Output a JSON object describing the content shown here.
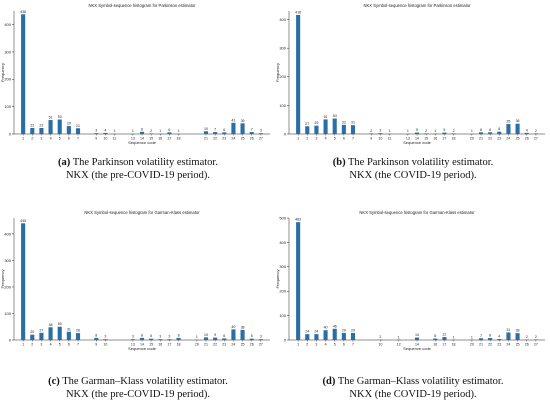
{
  "colors": {
    "bar": "#2a6ea6",
    "axis": "#222222",
    "text": "#222222"
  },
  "panels": [
    {
      "chart_data": {
        "type": "bar",
        "title": "NKX Symbol-sequence histogram for Parkinson estimator",
        "xlabel": "Sequence code",
        "ylabel": "Frequency",
        "ylim": [
          0,
          450
        ],
        "yticks": [
          0,
          100,
          200,
          300,
          400
        ],
        "categories": [
          "1",
          "2",
          "3",
          "4",
          "5",
          "6",
          "7",
          "9",
          "10",
          "11",
          "13",
          "14",
          "15",
          "16",
          "17",
          "18",
          "21",
          "22",
          "23",
          "24",
          "25",
          "26",
          "27"
        ],
        "x": [
          1,
          2,
          3,
          4,
          5,
          6,
          7,
          9,
          10,
          11,
          13,
          14,
          15,
          16,
          17,
          18,
          21,
          22,
          23,
          24,
          25,
          26,
          27
        ],
        "values": [
          438,
          22,
          22,
          51,
          53,
          29,
          21,
          3,
          4,
          1,
          1,
          8,
          2,
          1,
          6,
          1,
          10,
          7,
          6,
          41,
          39,
          7,
          3
        ],
        "bar_labels": [
          "438",
          "22",
          "22",
          "51",
          "53",
          "29",
          "21",
          "3",
          "4",
          "1",
          "1",
          "8",
          "2",
          "1",
          "6",
          "1",
          "10",
          "7",
          "6",
          "41",
          "39",
          "7",
          "3"
        ]
      },
      "caption": {
        "tag": "(a)",
        "line1": "The Parkinson volatility estimator.",
        "line2": "NKX (the pre-COVID-19 period)."
      }
    },
    {
      "chart_data": {
        "type": "bar",
        "title": "NKX Symbol-sequence histogram for Parkinson estimator",
        "xlabel": "Sequence code",
        "ylabel": "Frequency",
        "ylim": [
          0,
          430
        ],
        "yticks": [
          0,
          100,
          200,
          300,
          400
        ],
        "categories": [
          "1",
          "2",
          "3",
          "4",
          "5",
          "6",
          "7",
          "9",
          "10",
          "11",
          "13",
          "14",
          "15",
          "16",
          "17",
          "18",
          "20",
          "21",
          "22",
          "23",
          "24",
          "25",
          "26",
          "27"
        ],
        "x": [
          1,
          2,
          3,
          4,
          5,
          6,
          7,
          9,
          10,
          11,
          13,
          14,
          15,
          16,
          17,
          18,
          20,
          21,
          22,
          23,
          24,
          25,
          26,
          27
        ],
        "values": [
          416,
          27,
          29,
          51,
          54,
          32,
          31,
          2,
          3,
          1,
          1,
          5,
          2,
          1,
          5,
          2,
          1,
          6,
          6,
          8,
          35,
          36,
          4,
          2
        ],
        "bar_labels": [
          "416",
          "27",
          "29",
          "51",
          "54",
          "32",
          "31",
          "2",
          "3",
          "1",
          "1",
          "5",
          "2",
          "1",
          "5",
          "2",
          "1",
          "6",
          "6",
          "8",
          "35",
          "36",
          "4",
          "2"
        ]
      },
      "caption": {
        "tag": "(b)",
        "line1": "The Parkinson volatility estimator.",
        "line2": "NKX (the COVID-19 period)."
      }
    },
    {
      "chart_data": {
        "type": "bar",
        "title": "NKX Symbol-sequence histogram for Garman-Klass estimator",
        "xlabel": "Sequence code",
        "ylabel": "Frequency",
        "ylim": [
          0,
          460
        ],
        "yticks": [
          0,
          100,
          200,
          300,
          400
        ],
        "categories": [
          "1",
          "2",
          "3",
          "4",
          "5",
          "6",
          "7",
          "9",
          "10",
          "13",
          "14",
          "15",
          "16",
          "17",
          "18",
          "20",
          "21",
          "22",
          "23",
          "24",
          "25",
          "26",
          "27"
        ],
        "x": [
          1,
          2,
          3,
          4,
          5,
          6,
          7,
          9,
          10,
          13,
          14,
          15,
          16,
          17,
          18,
          20,
          21,
          22,
          23,
          24,
          25,
          26,
          27
        ],
        "values": [
          440,
          20,
          27,
          48,
          50,
          31,
          26,
          8,
          3,
          3,
          8,
          5,
          3,
          3,
          8,
          1,
          10,
          9,
          6,
          40,
          38,
          5,
          3
        ],
        "bar_labels": [
          "440",
          "20",
          "27",
          "48",
          "50",
          "31",
          "26",
          "8",
          "3",
          "3",
          "8",
          "5",
          "3",
          "3",
          "8",
          "1",
          "10",
          "9",
          "6",
          "40",
          "38",
          "5",
          "3"
        ]
      },
      "caption": {
        "tag": "(c)",
        "line1": "The Garman–Klass volatility estimator.",
        "line2": "NKX (the pre-COVID-19 period)."
      }
    },
    {
      "chart_data": {
        "type": "bar",
        "title": "NKX Symbol-sequence histogram for Garman-Klass estimator",
        "xlabel": "Sequence code",
        "ylabel": "Frequency",
        "ylim": [
          0,
          500
        ],
        "yticks": [
          0,
          100,
          200,
          300,
          400,
          500
        ],
        "categories": [
          "1",
          "2",
          "3",
          "4",
          "5",
          "6",
          "7",
          "10",
          "12",
          "14",
          "16",
          "17",
          "18",
          "20",
          "21",
          "22",
          "23",
          "24",
          "25",
          "26",
          "27"
        ],
        "x": [
          1,
          2,
          3,
          4,
          5,
          6,
          7,
          10,
          12,
          14,
          16,
          17,
          18,
          20,
          21,
          22,
          23,
          24,
          25,
          26,
          27
        ],
        "values": [
          483,
          24,
          24,
          40,
          46,
          29,
          29,
          2,
          1,
          10,
          6,
          12,
          1,
          1,
          7,
          8,
          4,
          31,
          28,
          2,
          2
        ],
        "bar_labels": [
          "483",
          "24",
          "24",
          "40",
          "46",
          "29",
          "29",
          "2",
          "1",
          "10",
          "6",
          "12",
          "1",
          "1",
          "7",
          "8",
          "4",
          "31",
          "28",
          "2",
          "2"
        ]
      },
      "caption": {
        "tag": "(d)",
        "line1": "The Garman–Klass volatility estimator.",
        "line2": "NKX (the COVID-19 period)."
      }
    }
  ]
}
